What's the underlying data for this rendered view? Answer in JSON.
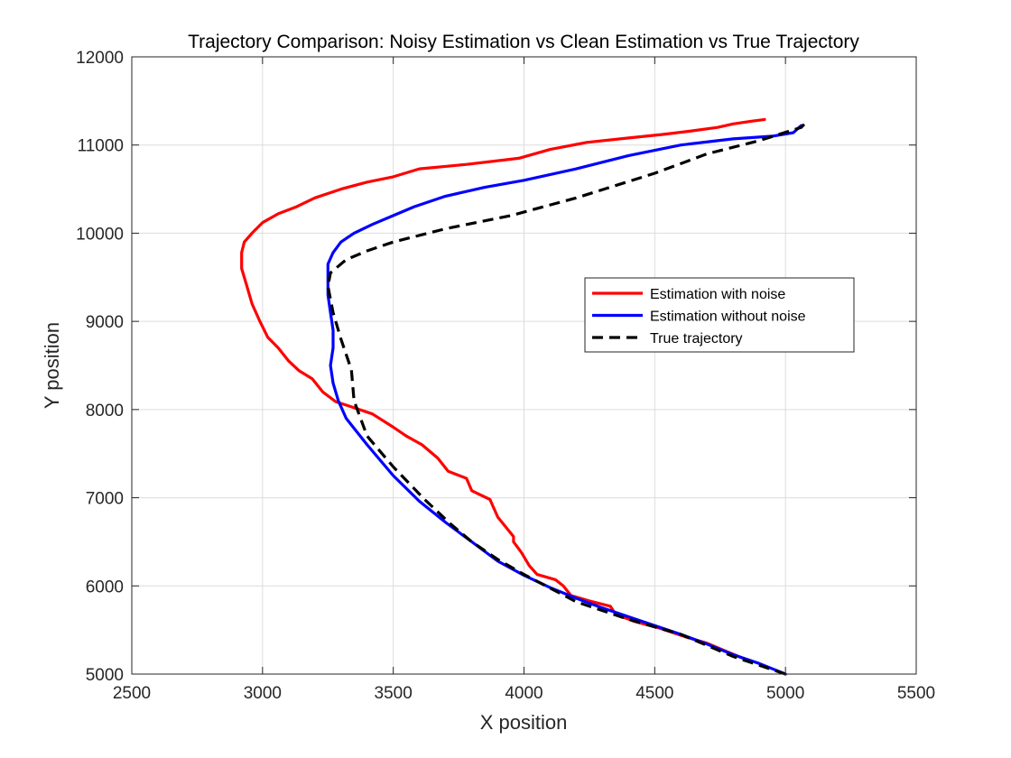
{
  "chart_data": {
    "type": "line",
    "title": "Trajectory Comparison: Noisy Estimation vs Clean Estimation vs True Trajectory",
    "xlabel": "X position",
    "ylabel": "Y position",
    "xlim": [
      2500,
      5500
    ],
    "ylim": [
      5000,
      12000
    ],
    "xticks": [
      2500,
      3000,
      3500,
      4000,
      4500,
      5000,
      5500
    ],
    "yticks": [
      5000,
      6000,
      7000,
      8000,
      9000,
      10000,
      11000,
      12000
    ],
    "grid": true,
    "legend_position": "center-right",
    "series": [
      {
        "name": "Estimation with noise",
        "color": "#ff0000",
        "style": "solid",
        "points": [
          [
            4870,
            5140
          ],
          [
            4780,
            5250
          ],
          [
            4700,
            5350
          ],
          [
            4620,
            5420
          ],
          [
            4520,
            5520
          ],
          [
            4420,
            5600
          ],
          [
            4350,
            5680
          ],
          [
            4330,
            5770
          ],
          [
            4250,
            5830
          ],
          [
            4180,
            5890
          ],
          [
            4150,
            6000
          ],
          [
            4120,
            6070
          ],
          [
            4050,
            6130
          ],
          [
            4020,
            6230
          ],
          [
            3990,
            6380
          ],
          [
            3960,
            6500
          ],
          [
            3960,
            6560
          ],
          [
            3900,
            6780
          ],
          [
            3870,
            6980
          ],
          [
            3800,
            7080
          ],
          [
            3780,
            7220
          ],
          [
            3710,
            7300
          ],
          [
            3670,
            7450
          ],
          [
            3610,
            7600
          ],
          [
            3550,
            7700
          ],
          [
            3500,
            7800
          ],
          [
            3420,
            7950
          ],
          [
            3330,
            8040
          ],
          [
            3280,
            8090
          ],
          [
            3230,
            8200
          ],
          [
            3190,
            8350
          ],
          [
            3140,
            8440
          ],
          [
            3100,
            8550
          ],
          [
            3060,
            8700
          ],
          [
            3020,
            8820
          ],
          [
            2990,
            9000
          ],
          [
            2960,
            9200
          ],
          [
            2940,
            9400
          ],
          [
            2920,
            9600
          ],
          [
            2920,
            9780
          ],
          [
            2930,
            9900
          ],
          [
            2960,
            10000
          ],
          [
            3000,
            10120
          ],
          [
            3060,
            10220
          ],
          [
            3130,
            10300
          ],
          [
            3200,
            10400
          ],
          [
            3300,
            10500
          ],
          [
            3400,
            10580
          ],
          [
            3500,
            10640
          ],
          [
            3600,
            10730
          ],
          [
            3780,
            10780
          ],
          [
            3980,
            10850
          ],
          [
            4100,
            10950
          ],
          [
            4240,
            11030
          ],
          [
            4400,
            11080
          ],
          [
            4530,
            11120
          ],
          [
            4640,
            11160
          ],
          [
            4740,
            11200
          ],
          [
            4800,
            11240
          ],
          [
            4870,
            11270
          ],
          [
            4920,
            11290
          ]
        ]
      },
      {
        "name": "Estimation without noise",
        "color": "#0000ff",
        "style": "solid",
        "points": [
          [
            5000,
            5000
          ],
          [
            4900,
            5120
          ],
          [
            4800,
            5220
          ],
          [
            4700,
            5340
          ],
          [
            4600,
            5450
          ],
          [
            4500,
            5550
          ],
          [
            4400,
            5650
          ],
          [
            4300,
            5750
          ],
          [
            4200,
            5860
          ],
          [
            4100,
            5980
          ],
          [
            4000,
            6120
          ],
          [
            3900,
            6280
          ],
          [
            3800,
            6500
          ],
          [
            3700,
            6720
          ],
          [
            3600,
            6960
          ],
          [
            3500,
            7250
          ],
          [
            3400,
            7600
          ],
          [
            3320,
            7900
          ],
          [
            3290,
            8100
          ],
          [
            3270,
            8300
          ],
          [
            3260,
            8500
          ],
          [
            3270,
            8700
          ],
          [
            3270,
            8900
          ],
          [
            3260,
            9100
          ],
          [
            3250,
            9300
          ],
          [
            3250,
            9500
          ],
          [
            3250,
            9650
          ],
          [
            3270,
            9780
          ],
          [
            3300,
            9900
          ],
          [
            3350,
            10000
          ],
          [
            3420,
            10100
          ],
          [
            3500,
            10200
          ],
          [
            3580,
            10300
          ],
          [
            3700,
            10420
          ],
          [
            3850,
            10520
          ],
          [
            4000,
            10600
          ],
          [
            4200,
            10730
          ],
          [
            4400,
            10880
          ],
          [
            4600,
            11000
          ],
          [
            4800,
            11070
          ],
          [
            4950,
            11100
          ],
          [
            5030,
            11140
          ],
          [
            5060,
            11220
          ]
        ]
      },
      {
        "name": "True trajectory",
        "color": "#000000",
        "style": "dashed",
        "points": [
          [
            5000,
            5000
          ],
          [
            4800,
            5200
          ],
          [
            4600,
            5450
          ],
          [
            4400,
            5620
          ],
          [
            4200,
            5820
          ],
          [
            4000,
            6130
          ],
          [
            3900,
            6300
          ],
          [
            3800,
            6500
          ],
          [
            3720,
            6700
          ],
          [
            3620,
            6980
          ],
          [
            3500,
            7350
          ],
          [
            3400,
            7700
          ],
          [
            3350,
            8100
          ],
          [
            3340,
            8450
          ],
          [
            3300,
            8800
          ],
          [
            3270,
            9100
          ],
          [
            3250,
            9400
          ],
          [
            3260,
            9550
          ],
          [
            3320,
            9700
          ],
          [
            3400,
            9800
          ],
          [
            3500,
            9900
          ],
          [
            3700,
            10050
          ],
          [
            3950,
            10200
          ],
          [
            4200,
            10400
          ],
          [
            4500,
            10680
          ],
          [
            4700,
            10900
          ],
          [
            4900,
            11050
          ],
          [
            5060,
            11200
          ],
          [
            5080,
            11260
          ]
        ]
      }
    ]
  }
}
